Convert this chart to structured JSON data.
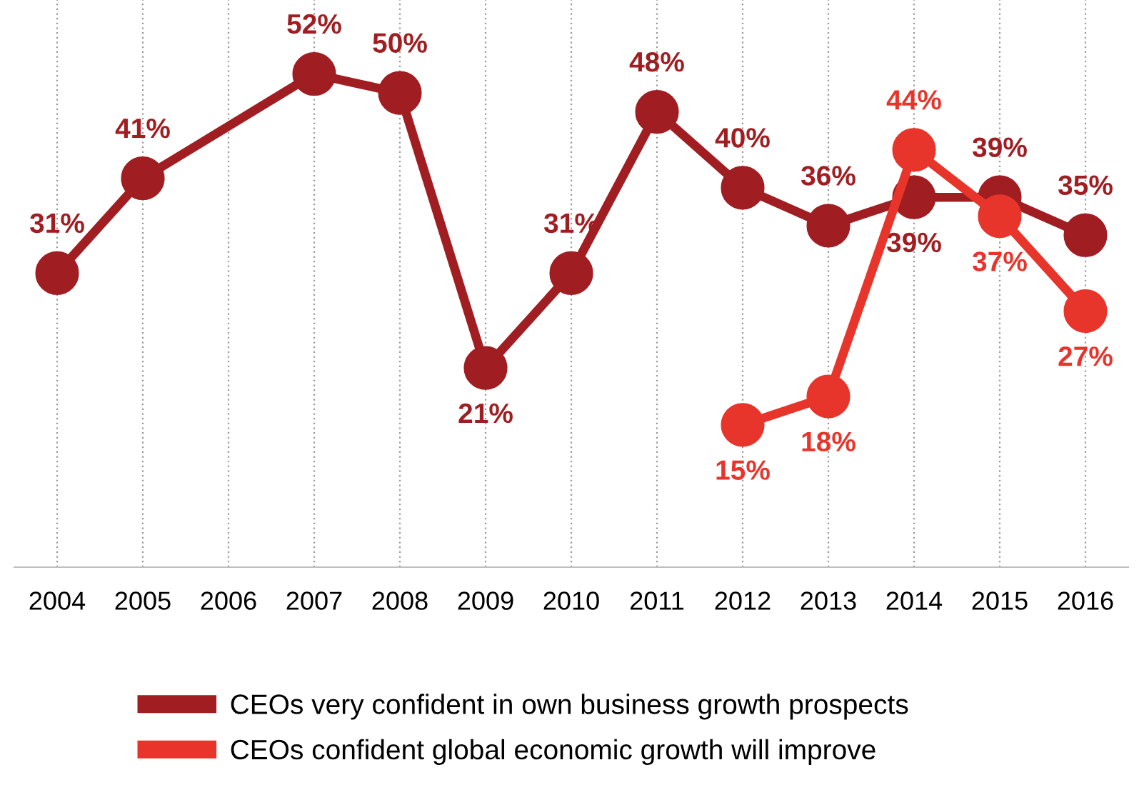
{
  "chart_data": {
    "type": "line",
    "xlim": [
      2003.5,
      2016.5
    ],
    "xticks": [
      2004,
      2005,
      2006,
      2007,
      2008,
      2009,
      2010,
      2011,
      2012,
      2013,
      2014,
      2015,
      2016
    ],
    "tick_labels": "x",
    "grid": "x",
    "legend": "bottom",
    "marker": "circle",
    "line_style": "solid",
    "series": [
      {
        "name": "CEOs very confident in own business growth prospects",
        "color": "#a01e22",
        "x": [
          2004,
          2005,
          2007,
          2008,
          2009,
          2010,
          2011,
          2012,
          2013,
          2014,
          2015,
          2016
        ],
        "values": [
          31,
          41,
          52,
          50,
          21,
          31,
          48,
          40,
          36,
          39,
          39,
          35
        ],
        "value_labels": [
          "31%",
          "41%",
          "52%",
          "50%",
          "21%",
          "31%",
          "48%",
          "40%",
          "36%",
          "39%",
          "39%",
          "35%"
        ]
      },
      {
        "name": "CEOs confident global economic growth will improve",
        "color": "#e8352b",
        "x": [
          2012,
          2013,
          2014,
          2015,
          2016
        ],
        "values": [
          15,
          18,
          44,
          37,
          27
        ],
        "value_labels": [
          "15%",
          "18%",
          "44%",
          "37%",
          "27%"
        ]
      }
    ]
  }
}
